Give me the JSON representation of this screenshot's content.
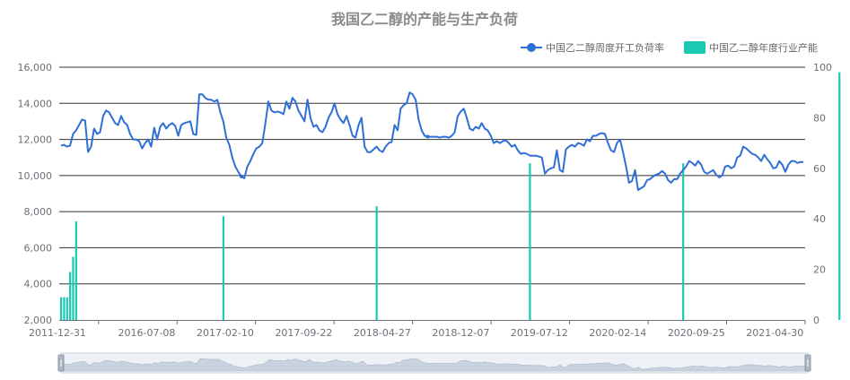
{
  "chart_data": {
    "type": "line",
    "title": "我国乙二醇的产能与生产负荷",
    "legend": {
      "position": "top-right",
      "items": [
        {
          "name": "中国乙二醇周度开工负荷率",
          "color": "#2f6fd6",
          "kind": "line"
        },
        {
          "name": "中国乙二醇年度行业产能",
          "color": "#1cc8b2",
          "kind": "bar"
        }
      ]
    },
    "y_left": {
      "min": 2000,
      "max": 16000,
      "ticks": [
        "2,000",
        "4,000",
        "6,000",
        "8,000",
        "10,000",
        "12,000",
        "14,000",
        "16,000"
      ]
    },
    "y_right": {
      "min": 0,
      "max": 100,
      "ticks": [
        "0",
        "20",
        "40",
        "60",
        "80",
        "100"
      ]
    },
    "x_labels": [
      "2011-12-31",
      "2016-07-08",
      "2017-02-10",
      "2017-09-22",
      "2018-04-27",
      "2018-12-07",
      "2019-07-12",
      "2020-02-14",
      "2020-09-25",
      "2021-04-30"
    ],
    "series": [
      {
        "name": "中国乙二醇周度开工负荷率",
        "axis": "left",
        "type": "line",
        "values": [
          11650,
          11700,
          11600,
          11650,
          12300,
          12500,
          12800,
          13100,
          13050,
          11300,
          11600,
          12600,
          12300,
          12400,
          13300,
          13600,
          13500,
          13200,
          12900,
          12800,
          13300,
          12950,
          12800,
          12300,
          12000,
          12000,
          11900,
          11500,
          11800,
          12000,
          11600,
          12650,
          12000,
          12700,
          12900,
          12600,
          12800,
          12900,
          12750,
          12200,
          12800,
          12900,
          12950,
          13000,
          12300,
          12250,
          14500,
          14500,
          14300,
          14200,
          14200,
          14100,
          14200,
          13500,
          13000,
          12100,
          11700,
          11000,
          10500,
          10200,
          9950,
          9850,
          10500,
          10800,
          11200,
          11500,
          11600,
          11800,
          12900,
          14100,
          13600,
          13500,
          13550,
          13500,
          13400,
          14100,
          13700,
          14300,
          14100,
          13600,
          13300,
          13000,
          14200,
          13200,
          12700,
          12800,
          12500,
          12400,
          12700,
          13200,
          13500,
          14000,
          13400,
          13100,
          12900,
          13300,
          12800,
          12200,
          12100,
          12800,
          13200,
          11600,
          11300,
          11300,
          11450,
          11600,
          11400,
          11300,
          11600,
          11800,
          11850,
          12800,
          12500,
          13700,
          13900,
          14000,
          14600,
          14500,
          14200,
          13100,
          12500,
          12200,
          12150,
          12150,
          12150,
          12150,
          12100,
          12150,
          12150,
          12100,
          12200,
          12400,
          13300,
          13550,
          13700,
          13200,
          12600,
          12500,
          12700,
          12600,
          12900,
          12600,
          12500,
          12200,
          11800,
          11900,
          11800,
          11900,
          11950,
          11800,
          11600,
          11700,
          11400,
          11200,
          11250,
          11200,
          11100,
          11100,
          11100,
          11050,
          11000,
          10100,
          10300,
          10400,
          10450,
          11400,
          10300,
          10200,
          11450,
          11600,
          11700,
          11600,
          11800,
          11750,
          11650,
          12000,
          11900,
          12200,
          12200,
          12300,
          12350,
          12300,
          11800,
          11400,
          11300,
          11800,
          12000,
          11300,
          10500,
          9600,
          9700,
          10300,
          9200,
          9300,
          9400,
          9750,
          9800,
          9950,
          10050,
          10100,
          10250,
          10100,
          9750,
          9600,
          9800,
          9800,
          10100,
          10300,
          10500,
          10800,
          10700,
          10550,
          10800,
          10600,
          10200,
          10100,
          10200,
          10300,
          10050,
          9900,
          10000,
          10500,
          10550,
          10400,
          10500,
          11000,
          11100,
          11600,
          11500,
          11350,
          11200,
          11150,
          11000,
          10800,
          11150,
          10900,
          10700,
          10400,
          10450,
          10800,
          10600,
          10200,
          10600,
          10800,
          10800,
          10700,
          10750,
          10750
        ]
      },
      {
        "name": "中国乙二醇年度行业产能",
        "axis": "right",
        "type": "bar",
        "bars": [
          {
            "index": 0,
            "value": 9
          },
          {
            "index": 1,
            "value": 9
          },
          {
            "index": 2,
            "value": 9
          },
          {
            "index": 3,
            "value": 19
          },
          {
            "index": 4,
            "value": 25
          },
          {
            "index": 5,
            "value": 39
          },
          {
            "index": 54,
            "value": 41
          },
          {
            "index": 105,
            "value": 45
          },
          {
            "index": 156,
            "value": 62
          },
          {
            "index": 207,
            "value": 62
          },
          {
            "index": 259,
            "value": 98
          }
        ]
      }
    ],
    "grid": true
  }
}
